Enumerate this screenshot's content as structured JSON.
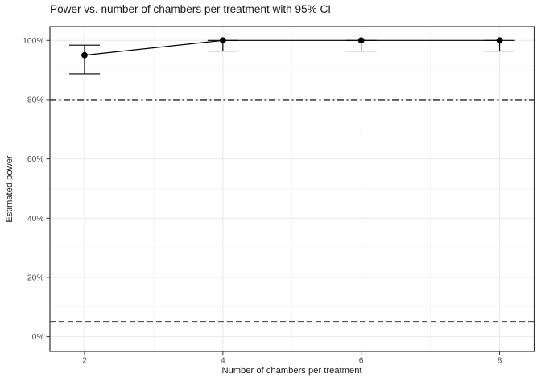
{
  "chart_data": {
    "type": "line",
    "title": "Power vs. number of chambers per treatment with 95% CI",
    "xlabel": "Number of chambers per treatment",
    "ylabel": "Estimated power",
    "x": [
      2,
      4,
      6,
      8
    ],
    "series": [
      {
        "name": "Estimated power",
        "values": [
          95,
          100,
          100,
          100
        ],
        "ci_lower": [
          88.7,
          96.4,
          96.4,
          96.4
        ],
        "ci_upper": [
          98.4,
          100,
          100,
          100
        ]
      }
    ],
    "reference_lines": [
      {
        "y": 80,
        "style": "dashdot"
      },
      {
        "y": 5,
        "style": "dashed"
      }
    ],
    "xlim": [
      1.5,
      8.5
    ],
    "ylim": [
      -5,
      104.7
    ],
    "x_ticks": [
      2,
      4,
      6,
      8
    ],
    "x_tick_labels": [
      "2",
      "4",
      "6",
      "8"
    ],
    "y_ticks": [
      0,
      20,
      40,
      60,
      80,
      100
    ],
    "y_tick_labels": [
      "0%",
      "20%",
      "40%",
      "60%",
      "80%",
      "100%"
    ],
    "x_minor_ticks": [
      3,
      5,
      7
    ],
    "y_minor_ticks": [
      10,
      30,
      50,
      70,
      90
    ],
    "grid": "on",
    "legend": "none",
    "colors": {
      "data": "#000000",
      "grid_major": "#e9e9e9",
      "grid_minor": "#f1f1f1",
      "panel_border": "#333333",
      "axis_text": "#4d4d4d",
      "title_text": "#1a1a1a",
      "refline_dashdot": "#262626",
      "refline_dashed": "#3d3d3d",
      "background": "#ffffff"
    }
  }
}
